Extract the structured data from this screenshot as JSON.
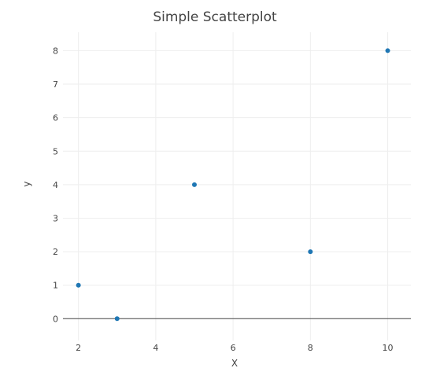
{
  "chart_data": {
    "type": "scatter",
    "title": "Simple Scatterplot",
    "xlabel": "X",
    "ylabel": "y",
    "xlim": [
      1.6,
      10.6
    ],
    "ylim": [
      -0.65,
      8.55
    ],
    "x_ticks": [
      2,
      4,
      6,
      8,
      10
    ],
    "y_ticks": [
      0,
      1,
      2,
      3,
      4,
      5,
      6,
      7,
      8
    ],
    "grid": true,
    "series": [
      {
        "color": "#1f77b4",
        "points": [
          {
            "x": 2,
            "y": 1
          },
          {
            "x": 3,
            "y": 0
          },
          {
            "x": 5,
            "y": 4
          },
          {
            "x": 8,
            "y": 2
          },
          {
            "x": 10,
            "y": 8
          }
        ]
      }
    ]
  }
}
